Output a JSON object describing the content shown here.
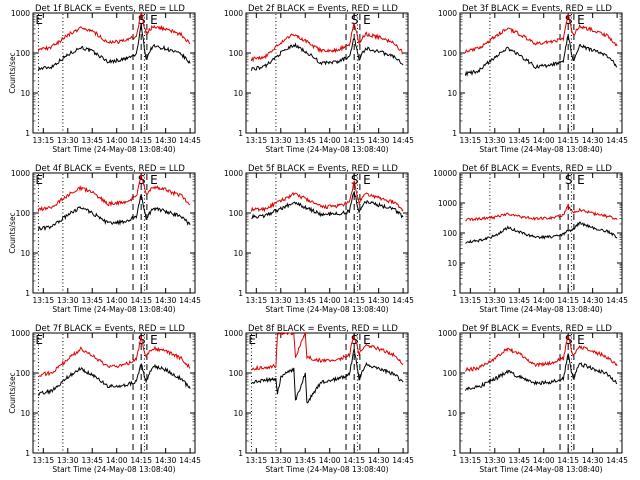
{
  "colors": {
    "events": "#000000",
    "lld": "#e00000",
    "axis": "#000000",
    "background": "#ffffff"
  },
  "chart_data": [
    {
      "type": "line",
      "title": "Det 1f BLACK = Events, RED = LLD",
      "xlabel": "Start Time (24-May-08 13:08:40)",
      "ylabel": "Counts/sec",
      "x_ticks": [
        "13:15",
        "13:30",
        "13:45",
        "14:00",
        "14:15",
        "14:30",
        "14:45"
      ],
      "y_ticks": [
        "1",
        "10",
        "100",
        "1000"
      ],
      "ylim": [
        1,
        1000
      ],
      "y_scale": "log",
      "markers": [
        "E",
        "S",
        "E"
      ],
      "series": [
        {
          "name": "Events",
          "x": [
            "13:12",
            "13:20",
            "13:30",
            "13:38",
            "13:45",
            "13:55",
            "14:05",
            "14:12",
            "14:15",
            "14:18",
            "14:22",
            "14:30",
            "14:40",
            "14:45"
          ],
          "values": [
            40,
            45,
            90,
            140,
            110,
            60,
            70,
            90,
            500,
            70,
            150,
            130,
            90,
            55
          ]
        },
        {
          "name": "LLD",
          "x": [
            "13:12",
            "13:20",
            "13:30",
            "13:38",
            "13:45",
            "13:55",
            "14:05",
            "14:12",
            "14:15",
            "14:18",
            "14:22",
            "14:30",
            "14:40",
            "14:45"
          ],
          "values": [
            120,
            140,
            280,
            430,
            360,
            180,
            200,
            260,
            1000,
            300,
            450,
            400,
            280,
            170
          ]
        }
      ]
    },
    {
      "type": "line",
      "title": "Det 2f BLACK = Events, RED = LLD",
      "xlabel": "Start Time (24-May-08 13:08:40)",
      "ylabel": "",
      "x_ticks": [
        "13:15",
        "13:30",
        "13:45",
        "14:00",
        "14:15",
        "14:30",
        "14:45"
      ],
      "y_ticks": [
        "1",
        "10",
        "100",
        "1000"
      ],
      "ylim": [
        1,
        1000
      ],
      "y_scale": "log",
      "markers": [
        "S",
        "E"
      ],
      "series": [
        {
          "name": "Events",
          "x": [
            "13:12",
            "13:20",
            "13:30",
            "13:38",
            "13:45",
            "13:55",
            "14:05",
            "14:12",
            "14:15",
            "14:18",
            "14:22",
            "14:30",
            "14:40",
            "14:45"
          ],
          "values": [
            40,
            45,
            100,
            160,
            110,
            55,
            60,
            80,
            250,
            70,
            130,
            110,
            80,
            50
          ]
        },
        {
          "name": "LLD",
          "x": [
            "13:12",
            "13:20",
            "13:30",
            "13:38",
            "13:45",
            "13:55",
            "14:05",
            "14:12",
            "14:15",
            "14:18",
            "14:22",
            "14:30",
            "14:40",
            "14:45"
          ],
          "values": [
            70,
            80,
            180,
            300,
            200,
            110,
            120,
            160,
            550,
            180,
            300,
            250,
            170,
            100
          ]
        }
      ]
    },
    {
      "type": "line",
      "title": "Det 3f BLACK = Events, RED = LLD",
      "xlabel": "Start Time (24-May-08 13:08:40)",
      "ylabel": "",
      "x_ticks": [
        "13:15",
        "13:30",
        "13:45",
        "14:00",
        "14:15",
        "14:30",
        "14:45"
      ],
      "y_ticks": [
        "1",
        "10",
        "100",
        "1000"
      ],
      "ylim": [
        1,
        1000
      ],
      "y_scale": "log",
      "markers": [
        "S",
        "E"
      ],
      "series": [
        {
          "name": "Events",
          "x": [
            "13:12",
            "13:20",
            "13:30",
            "13:38",
            "13:45",
            "13:55",
            "14:05",
            "14:12",
            "14:15",
            "14:18",
            "14:22",
            "14:30",
            "14:40",
            "14:45"
          ],
          "values": [
            30,
            35,
            80,
            130,
            90,
            45,
            50,
            60,
            300,
            60,
            150,
            120,
            80,
            45
          ]
        },
        {
          "name": "LLD",
          "x": [
            "13:12",
            "13:20",
            "13:30",
            "13:38",
            "13:45",
            "13:55",
            "14:05",
            "14:12",
            "14:15",
            "14:18",
            "14:22",
            "14:30",
            "14:40",
            "14:45"
          ],
          "values": [
            110,
            130,
            260,
            420,
            300,
            170,
            190,
            230,
            900,
            280,
            450,
            380,
            260,
            150
          ]
        }
      ]
    },
    {
      "type": "line",
      "title": "Det 4f BLACK = Events, RED = LLD",
      "xlabel": "Start Time (24-May-08 13:08:40)",
      "ylabel": "Counts/sec",
      "x_ticks": [
        "13:15",
        "13:30",
        "13:45",
        "14:00",
        "14:15",
        "14:30",
        "14:45"
      ],
      "y_ticks": [
        "1",
        "10",
        "100",
        "1000"
      ],
      "ylim": [
        1,
        1000
      ],
      "y_scale": "log",
      "markers": [
        "E",
        "S",
        "E"
      ],
      "series": [
        {
          "name": "Events",
          "x": [
            "13:12",
            "13:20",
            "13:30",
            "13:38",
            "13:45",
            "13:55",
            "14:05",
            "14:12",
            "14:15",
            "14:18",
            "14:22",
            "14:30",
            "14:40",
            "14:45"
          ],
          "values": [
            40,
            45,
            90,
            140,
            100,
            55,
            60,
            80,
            300,
            70,
            130,
            110,
            80,
            50
          ]
        },
        {
          "name": "LLD",
          "x": [
            "13:12",
            "13:20",
            "13:30",
            "13:38",
            "13:45",
            "13:55",
            "14:05",
            "14:12",
            "14:15",
            "14:18",
            "14:22",
            "14:30",
            "14:40",
            "14:45"
          ],
          "values": [
            120,
            140,
            280,
            420,
            330,
            170,
            190,
            250,
            900,
            300,
            450,
            380,
            260,
            160
          ]
        }
      ]
    },
    {
      "type": "line",
      "title": "Det 5f BLACK = Events, RED = LLD",
      "xlabel": "Start Time (24-May-08 13:08:40)",
      "ylabel": "",
      "x_ticks": [
        "13:15",
        "13:30",
        "13:45",
        "14:00",
        "14:15",
        "14:30",
        "14:45"
      ],
      "y_ticks": [
        "1",
        "10",
        "100",
        "1000"
      ],
      "ylim": [
        1,
        1000
      ],
      "y_scale": "log",
      "markers": [
        "S",
        "E"
      ],
      "series": [
        {
          "name": "Events",
          "x": [
            "13:12",
            "13:20",
            "13:30",
            "13:38",
            "13:45",
            "13:55",
            "14:05",
            "14:12",
            "14:15",
            "14:18",
            "14:22",
            "14:30",
            "14:40",
            "14:45"
          ],
          "values": [
            80,
            85,
            130,
            180,
            140,
            90,
            95,
            110,
            350,
            110,
            190,
            160,
            120,
            80
          ]
        },
        {
          "name": "LLD",
          "x": [
            "13:12",
            "13:20",
            "13:30",
            "13:38",
            "13:45",
            "13:55",
            "14:05",
            "14:12",
            "14:15",
            "14:18",
            "14:22",
            "14:30",
            "14:40",
            "14:45"
          ],
          "values": [
            120,
            125,
            200,
            300,
            230,
            140,
            150,
            180,
            600,
            180,
            300,
            240,
            180,
            120
          ]
        }
      ]
    },
    {
      "type": "line",
      "title": "Det 6f BLACK = Events, RED = LLD",
      "xlabel": "Start Time (24-May-08 13:08:40)",
      "ylabel": "",
      "x_ticks": [
        "13:15",
        "13:30",
        "13:45",
        "14:00",
        "14:15",
        "14:30",
        "14:45"
      ],
      "y_ticks": [
        "1",
        "10",
        "100",
        "1000",
        "10000"
      ],
      "ylim": [
        1,
        10000
      ],
      "y_scale": "log",
      "markers": [
        "S",
        "E"
      ],
      "series": [
        {
          "name": "Events",
          "x": [
            "13:12",
            "13:20",
            "13:30",
            "13:38",
            "13:45",
            "13:55",
            "14:05",
            "14:12",
            "14:15",
            "14:18",
            "14:22",
            "14:30",
            "14:40",
            "14:45"
          ],
          "values": [
            50,
            55,
            80,
            150,
            110,
            70,
            75,
            90,
            120,
            130,
            220,
            150,
            110,
            70
          ]
        },
        {
          "name": "LLD",
          "x": [
            "13:12",
            "13:20",
            "13:30",
            "13:38",
            "13:45",
            "13:55",
            "14:05",
            "14:12",
            "14:15",
            "14:18",
            "14:22",
            "14:30",
            "14:40",
            "14:45"
          ],
          "values": [
            280,
            290,
            330,
            450,
            350,
            300,
            320,
            400,
            800,
            450,
            600,
            450,
            350,
            280
          ]
        }
      ]
    },
    {
      "type": "line",
      "title": "Det 7f BLACK = Events, RED = LLD",
      "xlabel": "Start Time (24-May-08 13:08:40)",
      "ylabel": "Counts/sec",
      "x_ticks": [
        "13:15",
        "13:30",
        "13:45",
        "14:00",
        "14:15",
        "14:30",
        "14:45"
      ],
      "y_ticks": [
        "1",
        "10",
        "100",
        "1000"
      ],
      "ylim": [
        1,
        1000
      ],
      "y_scale": "log",
      "markers": [
        "E",
        "S",
        "E"
      ],
      "series": [
        {
          "name": "Events",
          "x": [
            "13:12",
            "13:20",
            "13:30",
            "13:38",
            "13:45",
            "13:55",
            "14:05",
            "14:12",
            "14:15",
            "14:18",
            "14:22",
            "14:30",
            "14:40",
            "14:45"
          ],
          "values": [
            30,
            35,
            80,
            130,
            90,
            45,
            50,
            60,
            170,
            60,
            150,
            120,
            70,
            40
          ]
        },
        {
          "name": "LLD",
          "x": [
            "13:12",
            "13:20",
            "13:30",
            "13:38",
            "13:45",
            "13:55",
            "14:05",
            "14:12",
            "14:15",
            "14:18",
            "14:22",
            "14:30",
            "14:40",
            "14:45"
          ],
          "values": [
            90,
            100,
            220,
            400,
            280,
            140,
            160,
            220,
            750,
            250,
            420,
            350,
            230,
            130
          ]
        }
      ]
    },
    {
      "type": "line",
      "title": "Det 8f BLACK = Events, RED = LLD",
      "xlabel": "Start Time (24-May-08 13:08:40)",
      "ylabel": "",
      "x_ticks": [
        "13:15",
        "13:30",
        "13:45",
        "14:00",
        "14:15",
        "14:30",
        "14:45"
      ],
      "y_ticks": [
        "1",
        "10",
        "100",
        "1000"
      ],
      "ylim": [
        1,
        1000
      ],
      "y_scale": "log",
      "markers": [
        "E",
        "S",
        "E"
      ],
      "series": [
        {
          "name": "Events",
          "x": [
            "13:12",
            "13:20",
            "13:27",
            "13:28",
            "13:30",
            "13:38",
            "13:39",
            "13:45",
            "13:46",
            "13:55",
            "14:05",
            "14:12",
            "14:15",
            "14:18",
            "14:22",
            "14:30",
            "14:40",
            "14:45"
          ],
          "values": [
            60,
            65,
            70,
            30,
            80,
            130,
            20,
            100,
            18,
            60,
            70,
            90,
            400,
            70,
            160,
            130,
            90,
            60
          ]
        },
        {
          "name": "LLD",
          "x": [
            "13:12",
            "13:20",
            "13:27",
            "13:28",
            "13:30",
            "13:38",
            "13:39",
            "13:45",
            "13:46",
            "13:55",
            "14:05",
            "14:12",
            "14:15",
            "14:18",
            "14:22",
            "14:30",
            "14:40",
            "14:45"
          ],
          "values": [
            130,
            140,
            150,
            1000,
            1000,
            1000,
            250,
            1000,
            250,
            200,
            220,
            280,
            900,
            300,
            500,
            400,
            280,
            170
          ]
        }
      ]
    },
    {
      "type": "line",
      "title": "Det 9f BLACK = Events, RED = LLD",
      "xlabel": "Start Time (24-May-08 13:08:40)",
      "ylabel": "",
      "x_ticks": [
        "13:15",
        "13:30",
        "13:45",
        "14:00",
        "14:15",
        "14:30",
        "14:45"
      ],
      "y_ticks": [
        "1",
        "10",
        "100",
        "1000"
      ],
      "ylim": [
        1,
        1000
      ],
      "y_scale": "log",
      "markers": [
        "S",
        "E"
      ],
      "series": [
        {
          "name": "Events",
          "x": [
            "13:12",
            "13:20",
            "13:30",
            "13:38",
            "13:45",
            "13:55",
            "14:05",
            "14:12",
            "14:15",
            "14:18",
            "14:22",
            "14:30",
            "14:40",
            "14:45"
          ],
          "values": [
            40,
            45,
            70,
            110,
            80,
            55,
            60,
            70,
            300,
            70,
            170,
            130,
            90,
            55
          ]
        },
        {
          "name": "LLD",
          "x": [
            "13:12",
            "13:20",
            "13:30",
            "13:38",
            "13:45",
            "13:55",
            "14:05",
            "14:12",
            "14:15",
            "14:18",
            "14:22",
            "14:30",
            "14:40",
            "14:45"
          ],
          "values": [
            120,
            130,
            230,
            400,
            300,
            160,
            180,
            230,
            900,
            250,
            450,
            350,
            240,
            150
          ]
        }
      ]
    }
  ]
}
